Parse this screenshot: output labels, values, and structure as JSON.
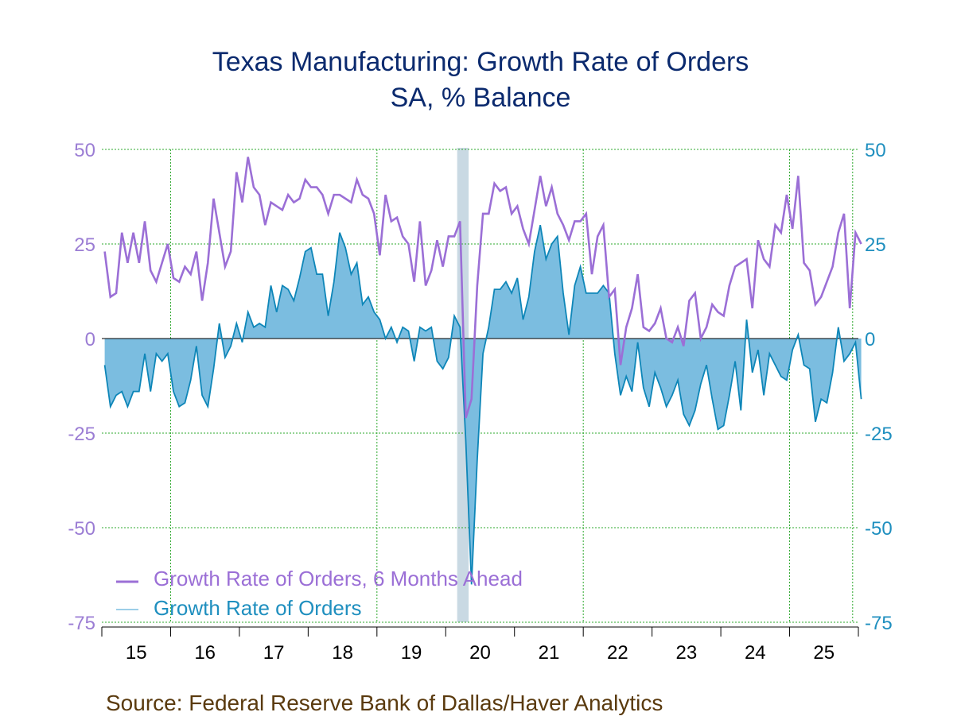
{
  "colors": {
    "title": "#0b2a6e",
    "left_axis": "#9b7dd4",
    "right_axis": "#1f8fbf",
    "series_6m": "#9b6fd6",
    "series_orders_line": "#0e86b8",
    "series_orders_fill": "#7bbde0",
    "grid": "#2ea82e",
    "recession": "#c9d9e3",
    "source": "#5a3a0e"
  },
  "chart_data": {
    "type": "line",
    "title": "Texas Manufacturing: Growth Rate of Orders",
    "subtitle": "SA, % Balance",
    "source": "Source:  Federal Reserve Bank of Dallas/Haver Analytics",
    "x_range": [
      "2015-01",
      "2025-12"
    ],
    "ylim": [
      -75,
      50
    ],
    "y_ticks_left": [
      "50",
      "25",
      "0",
      "-25",
      "-50",
      "-75"
    ],
    "y_ticks_right": [
      "50",
      "25",
      "0",
      "-25",
      "-50",
      "-75"
    ],
    "y_tick_values": [
      50,
      25,
      0,
      -25,
      -50,
      -75
    ],
    "x_tick_labels": [
      "15",
      "16",
      "17",
      "18",
      "19",
      "20",
      "21",
      "22",
      "23",
      "24",
      "25"
    ],
    "grid": true,
    "legend_placement": "bottom-left",
    "recession_shading": {
      "start": "2020-03",
      "end": "2020-04"
    },
    "series": [
      {
        "name": "Growth Rate of Orders, 6 Months Ahead",
        "start": "2015-01",
        "values": [
          23,
          11,
          12,
          28,
          20,
          28,
          20,
          31,
          18,
          15,
          20,
          25,
          16,
          15,
          19,
          17,
          23,
          10,
          20,
          37,
          28,
          19,
          23,
          44,
          36,
          48,
          40,
          38,
          30,
          36,
          35,
          34,
          38,
          36,
          37,
          42,
          40,
          40,
          38,
          33,
          38,
          38,
          37,
          36,
          42,
          38,
          37,
          33,
          22,
          38,
          31,
          32,
          27,
          25,
          15,
          31,
          14,
          18,
          26,
          19,
          27,
          27,
          31,
          -21,
          -16,
          14,
          33,
          33,
          41,
          39,
          40,
          33,
          35,
          29,
          25,
          34,
          43,
          35,
          40,
          33,
          30,
          26,
          31,
          31,
          33,
          17,
          27,
          30,
          11,
          13,
          -7,
          3,
          8,
          17,
          3,
          2,
          4,
          8,
          0,
          -1,
          3,
          -2,
          10,
          12,
          0,
          3,
          9,
          7,
          6,
          14,
          19,
          20,
          21,
          8,
          26,
          21,
          19,
          30,
          28,
          38,
          29,
          43,
          20,
          18,
          9,
          11,
          15,
          19,
          28,
          33,
          8,
          28,
          25
        ]
      },
      {
        "name": "Growth Rate of Orders",
        "start": "2015-01",
        "values": [
          -7,
          -18,
          -15,
          -14,
          -18,
          -14,
          -14,
          -4,
          -14,
          -4,
          -6,
          -4,
          -14,
          -18,
          -17,
          -11,
          -2,
          -15,
          -18,
          -8,
          4,
          -5,
          -2,
          4,
          -1,
          7,
          3,
          4,
          3,
          14,
          7,
          14,
          13,
          10,
          16,
          23,
          24,
          17,
          17,
          6,
          15,
          28,
          24,
          17,
          20,
          9,
          11,
          7,
          5,
          0,
          3,
          -1,
          3,
          2,
          -6,
          3,
          2,
          3,
          -6,
          -8,
          -5,
          6,
          3,
          -27,
          -65,
          -32,
          -4,
          3,
          13,
          13,
          15,
          12,
          16,
          5,
          11,
          23,
          30,
          21,
          25,
          27,
          12,
          1,
          14,
          19,
          12,
          12,
          12,
          14,
          12,
          -4,
          -15,
          -10,
          -14,
          -1,
          -13,
          -18,
          -9,
          -13,
          -18,
          -15,
          -11,
          -20,
          -23,
          -19,
          -12,
          -7,
          -16,
          -24,
          -23,
          -15,
          -6,
          -19,
          5,
          -9,
          -3,
          -15,
          -4,
          -7,
          -10,
          -11,
          -3,
          1,
          -7,
          -8,
          -22,
          -16,
          -17,
          -9,
          3,
          -6,
          -4,
          -1,
          -16
        ]
      }
    ]
  }
}
